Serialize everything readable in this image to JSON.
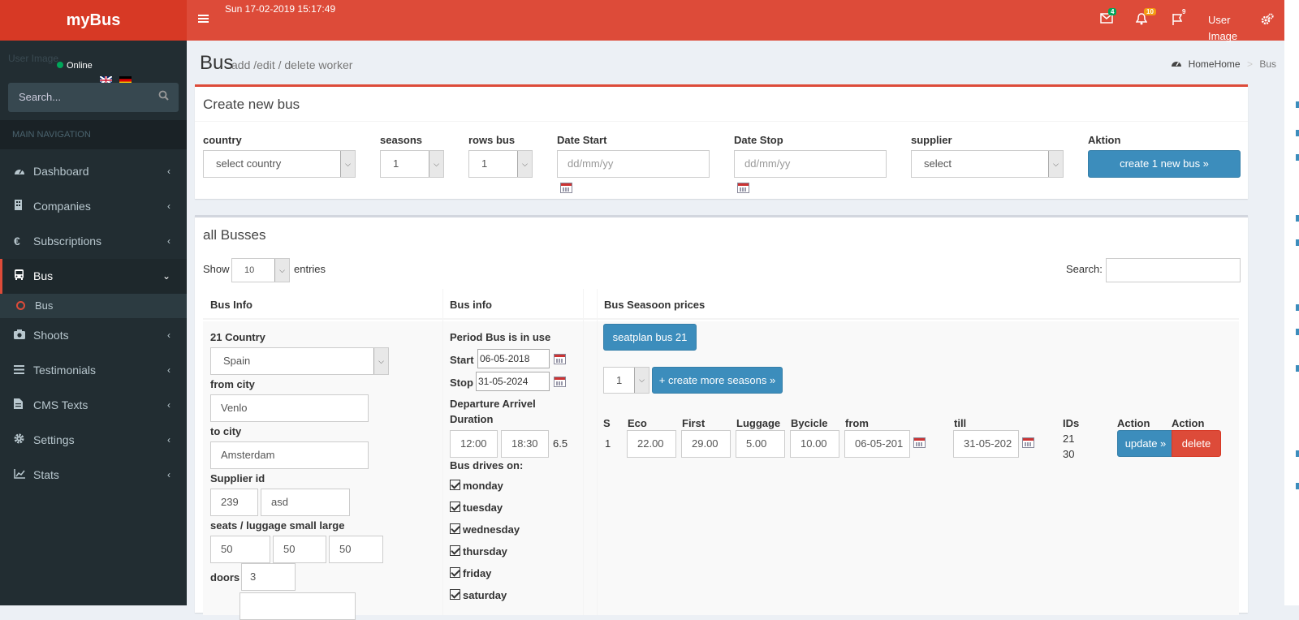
{
  "app": {
    "logo": "myBus"
  },
  "topbar": {
    "datetime": "Sun 17-02-2019 15:17:49",
    "mail_badge": "4",
    "bell_badge": "10",
    "flag_badge": "9",
    "user_image": "User Image",
    "colors": {
      "header": "#dd4b39",
      "logo": "#d73925"
    }
  },
  "sidebar": {
    "user_image_alt": "User Image",
    "status": "Online",
    "search_placeholder": "Search...",
    "nav_header": "MAIN NAVIGATION",
    "items": [
      {
        "label": "Dashboard",
        "icon": "dashboard-icon"
      },
      {
        "label": "Companies",
        "icon": "building-icon"
      },
      {
        "label": "Subscriptions",
        "icon": "euro-icon"
      },
      {
        "label": "Bus",
        "icon": "bus-icon"
      },
      {
        "label": "Shoots",
        "icon": "camera-icon"
      },
      {
        "label": "Testimonials",
        "icon": "list-icon"
      },
      {
        "label": "CMS Texts",
        "icon": "file-text-icon"
      },
      {
        "label": "Settings",
        "icon": "gear-icon"
      },
      {
        "label": "Stats",
        "icon": "chart-icon"
      }
    ],
    "sub_item": "Bus"
  },
  "page": {
    "title": "Bus",
    "subtitle": "add /edit / delete worker",
    "breadcrumb": {
      "home": "HomeHome",
      "current": "Bus"
    }
  },
  "create_box": {
    "title": "Create new bus",
    "labels": {
      "country": "country",
      "seasons": "seasons",
      "rows": "rows bus",
      "date_start": "Date Start",
      "date_stop": "Date Stop",
      "supplier": "supplier",
      "aktion": "Aktion"
    },
    "country_value": "select country",
    "seasons_value": "1",
    "rows_value": "1",
    "date_start_placeholder": "dd/mm/yy",
    "date_stop_placeholder": "dd/mm/yy",
    "supplier_value": "select",
    "create_button": "create 1 new bus »"
  },
  "list_box": {
    "title": "all Busses",
    "show": "Show",
    "entries_value": "10",
    "entries": "entries",
    "search_label": "Search:",
    "columns": [
      "Bus Info",
      "Bus info",
      "Bus Seasoon prices"
    ],
    "row": {
      "country_label": "21 Country",
      "country_value": "Spain",
      "from_label": "from city",
      "from_value": "Venlo",
      "to_label": "to city",
      "to_value": "Amsterdam",
      "supplier_label": "Supplier id",
      "supplier_id": "239",
      "supplier_name": "asd",
      "seats_label": "seats / luggage small large",
      "seats": "50",
      "luggage_small": "50",
      "luggage_large": "50",
      "doors_label": "doors",
      "doors": "3",
      "period_label": "Period Bus is in use",
      "start_label": "Start",
      "start_value": "06-05-2018",
      "stop_label": "Stop",
      "stop_value": "31-05-2024",
      "dep_label": "Departure Arrivel Duration",
      "departure": "12:00",
      "arrival": "18:30",
      "duration": "6.5",
      "drives_label": "Bus drives on:",
      "days": [
        "monday",
        "tuesday",
        "wednesday",
        "thursday",
        "friday",
        "saturday"
      ],
      "seatplan_button": "seatplan bus 21",
      "season_count": "1",
      "more_seasons_button": "+ create more seasons »",
      "price_headers": [
        "S",
        "Eco",
        "First",
        "Luggage",
        "Bycicle",
        "from",
        "till",
        "IDs",
        "Action",
        "Action"
      ],
      "price_row": {
        "s": "1",
        "eco": "22.00",
        "first": "29.00",
        "luggage": "5.00",
        "bycicle": "10.00",
        "from": "06-05-201",
        "till": "31-05-202",
        "id1": "21",
        "id2": "30",
        "update": "update »",
        "delete": "delete"
      }
    }
  }
}
